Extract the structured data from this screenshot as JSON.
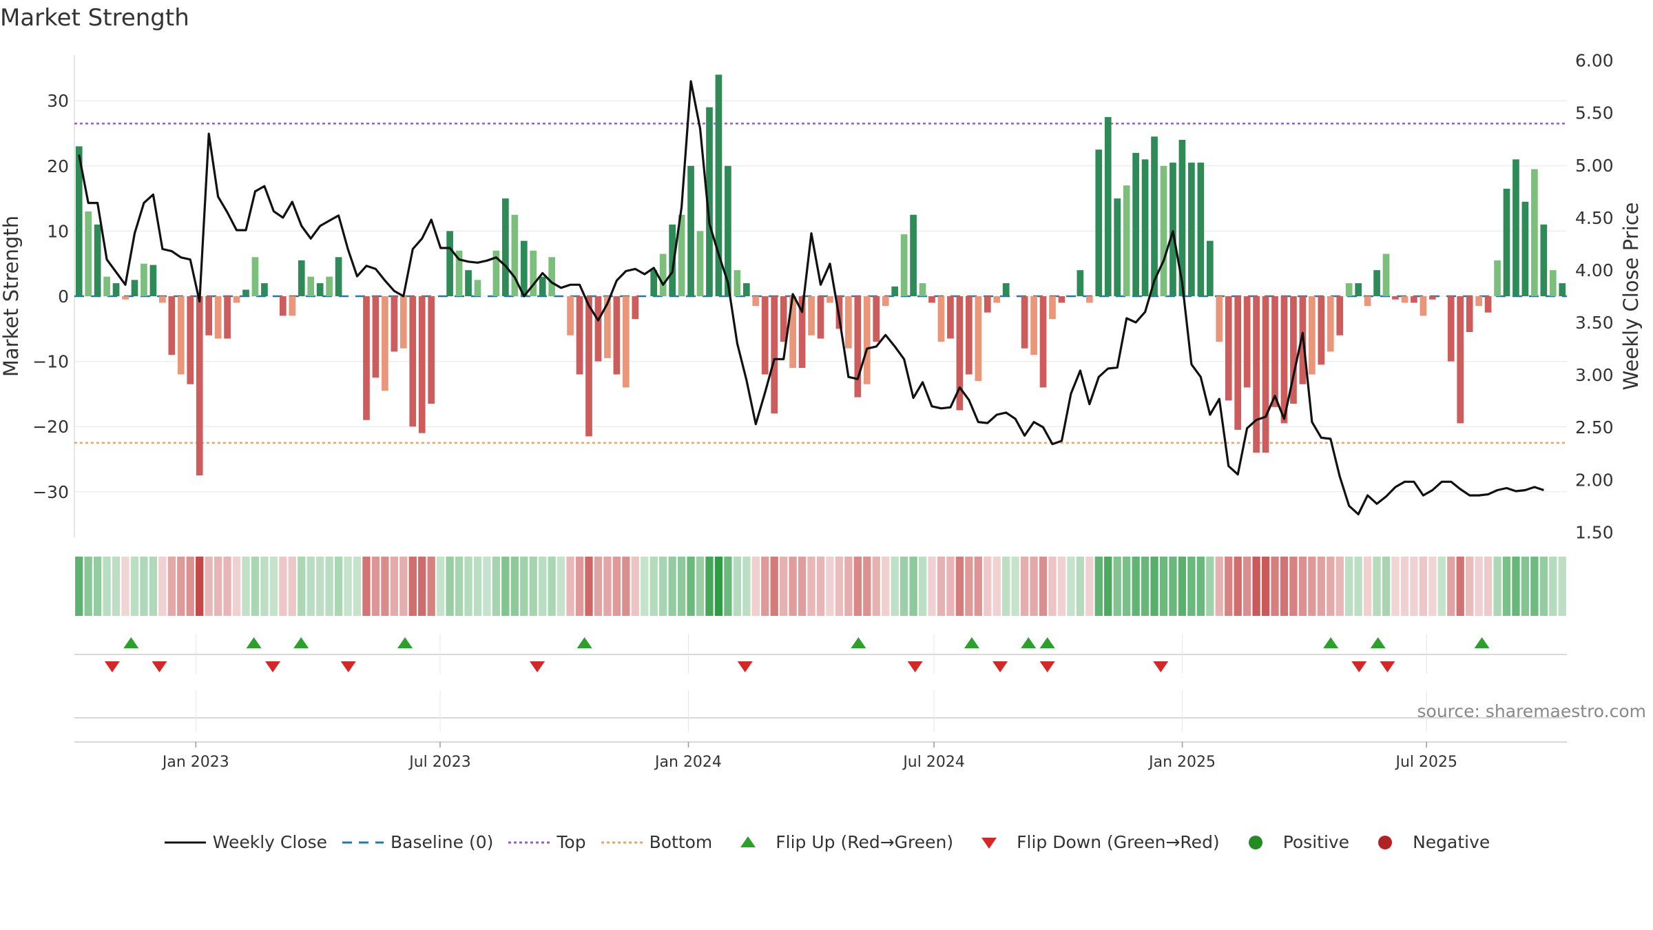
{
  "title": "Market Strength",
  "source": "source: sharemaestro.com",
  "colors": {
    "strong_green": "#2e8b57",
    "light_green": "#7cbf7c",
    "strong_red": "#cd5c5c",
    "light_red": "#e9967a",
    "price": "#111111",
    "baseline": "#1f77b4",
    "top": "#9b59d0",
    "bottom": "#f0a060",
    "flip_up": "#2ca02c",
    "flip_down": "#d62728",
    "positive": "#228b22",
    "negative": "#b22222"
  },
  "legend": [
    {
      "name": "legend-weekly-close",
      "label": "Weekly Close",
      "symbol": "line"
    },
    {
      "name": "legend-baseline",
      "label": "Baseline (0)",
      "symbol": "dash"
    },
    {
      "name": "legend-top",
      "label": "Top",
      "symbol": "dot-purple"
    },
    {
      "name": "legend-bottom",
      "label": "Bottom",
      "symbol": "dot-orange"
    },
    {
      "name": "legend-flip-up",
      "label": "Flip Up (Red→Green)",
      "symbol": "tri-up"
    },
    {
      "name": "legend-flip-down",
      "label": "Flip Down (Green→Red)",
      "symbol": "tri-down"
    },
    {
      "name": "legend-positive",
      "label": "Positive",
      "symbol": "circle-green"
    },
    {
      "name": "legend-negative",
      "label": "Negative",
      "symbol": "circle-red"
    }
  ],
  "chart_data": {
    "type": "bar",
    "title": "Market Strength",
    "ylabel": "Market Strength",
    "y2label": "Weekly Close Price",
    "ylim": [
      -37,
      37
    ],
    "y2lim": [
      1.45,
      6.05
    ],
    "yticks": [
      30,
      20,
      10,
      0,
      -10,
      -20,
      -30
    ],
    "ytick_labels": [
      "30",
      "20",
      "10",
      "0",
      "−10",
      "−20",
      "−30"
    ],
    "y2ticks": [
      6.0,
      5.5,
      5.0,
      4.5,
      4.0,
      3.5,
      3.0,
      2.5,
      2.0,
      1.5
    ],
    "y2tick_labels": [
      "6.00",
      "5.50",
      "5.00",
      "4.50",
      "4.00",
      "3.50",
      "3.00",
      "2.50",
      "2.00",
      "1.50"
    ],
    "x_start": "2022-10-03",
    "x_end": "2025-10-13",
    "xticks": [
      {
        "date": "2023-01-01",
        "label": "Jan 2023"
      },
      {
        "date": "2023-07-01",
        "label": "Jul 2023"
      },
      {
        "date": "2024-01-01",
        "label": "Jan 2024"
      },
      {
        "date": "2024-07-01",
        "label": "Jul 2024"
      },
      {
        "date": "2025-01-01",
        "label": "Jan 2025"
      },
      {
        "date": "2025-07-01",
        "label": "Jul 2025"
      }
    ],
    "top_line": 26.5,
    "bottom_line": -22.5,
    "baseline": 0,
    "series": [
      {
        "name": "Market Strength",
        "values": [
          23,
          13,
          11,
          3,
          2,
          -0.5,
          2.5,
          5,
          4.8,
          -1,
          -9,
          -12,
          -13.5,
          -27.5,
          -6,
          -6.5,
          -6.5,
          -1,
          1,
          6,
          2,
          0,
          -3,
          -3,
          5.5,
          3,
          2,
          3,
          6,
          0,
          0,
          -19,
          -12.5,
          -14.5,
          -8.5,
          -8,
          -20,
          -21,
          -16.5,
          0,
          10,
          7,
          4,
          2.5,
          0,
          7,
          15,
          12.5,
          8.5,
          7,
          3,
          6,
          0,
          -6,
          -12,
          -21.5,
          -10,
          -9.5,
          -12,
          -14,
          -3.5,
          0,
          4,
          6.5,
          11,
          12.5,
          20,
          10,
          29,
          34,
          20,
          4,
          2,
          -1.5,
          -12,
          -18,
          -7,
          -11,
          -11,
          -6,
          -6.5,
          -1,
          -5,
          -8,
          -15.5,
          -13.5,
          -7,
          -1.5,
          1.5,
          9.5,
          12.5,
          2,
          -1,
          -7,
          -6.5,
          -17.5,
          -12,
          -13,
          -2.5,
          -1,
          2,
          0,
          -8,
          -9,
          -14,
          -3.5,
          -1,
          0,
          4,
          -1,
          22.5,
          27.5,
          15,
          17,
          22,
          21,
          24.5,
          20,
          20.5,
          24,
          20.5,
          20.5,
          8.5,
          -7,
          -16,
          -20.5,
          -14,
          -24,
          -24,
          -17,
          -19.5,
          -16.5,
          -13.5,
          -12,
          -10.5,
          -8.5,
          -6,
          2,
          2,
          -1.5,
          4,
          6.5,
          -0.5,
          -1,
          -1,
          -3,
          -0.5,
          0,
          -10,
          -19.5,
          -5.5,
          -1.5,
          -2.5,
          5.5,
          16.5,
          21,
          14.5,
          19.5,
          11,
          4,
          2
        ]
      },
      {
        "name": "Weekly Close",
        "values": [
          5.1,
          4.64,
          4.64,
          4.1,
          3.98,
          3.86,
          4.35,
          4.64,
          4.72,
          4.2,
          4.18,
          4.12,
          4.1,
          3.7,
          5.3,
          4.7,
          4.55,
          4.38,
          4.38,
          4.75,
          4.8,
          4.56,
          4.5,
          4.65,
          4.42,
          4.3,
          4.42,
          4.47,
          4.52,
          4.2,
          3.94,
          4.04,
          4.01,
          3.9,
          3.8,
          3.75,
          4.2,
          4.3,
          4.48,
          4.21,
          4.21,
          4.1,
          4.08,
          4.07,
          4.09,
          4.12,
          4.04,
          3.93,
          3.75,
          3.86,
          3.97,
          3.88,
          3.83,
          3.86,
          3.86,
          3.66,
          3.52,
          3.68,
          3.9,
          3.99,
          4.01,
          3.96,
          4.02,
          3.86,
          3.98,
          4.6,
          5.8,
          5.35,
          4.44,
          4.15,
          3.88,
          3.3,
          2.95,
          2.53,
          2.83,
          3.15,
          3.15,
          3.77,
          3.6,
          4.35,
          3.86,
          4.06,
          3.55,
          2.98,
          2.96,
          3.25,
          3.27,
          3.38,
          3.27,
          3.15,
          2.78,
          2.93,
          2.7,
          2.68,
          2.69,
          2.88,
          2.76,
          2.55,
          2.54,
          2.62,
          2.64,
          2.58,
          2.42,
          2.55,
          2.5,
          2.34,
          2.37,
          2.82,
          3.04,
          2.72,
          2.98,
          3.06,
          3.07,
          3.54,
          3.5,
          3.6,
          3.9,
          4.09,
          4.37,
          3.88,
          3.1,
          2.98,
          2.62,
          2.77,
          2.13,
          2.05,
          2.49,
          2.57,
          2.6,
          2.8,
          2.58,
          2.99,
          3.4,
          2.55,
          2.4,
          2.39,
          2.03,
          1.75,
          1.67,
          1.85,
          1.77,
          1.84,
          1.93,
          1.98,
          1.98,
          1.85,
          1.9,
          1.98,
          1.98,
          1.91,
          1.85,
          1.85,
          1.86,
          1.9,
          1.92,
          1.89,
          1.9,
          1.93,
          1.9
        ]
      }
    ],
    "strip_values": [
      23,
      13,
      11,
      3,
      2,
      -0.5,
      2.5,
      5,
      4.8,
      -1,
      -9,
      -12,
      -13.5,
      -27.5,
      -6,
      -6.5,
      -6.5,
      -1,
      1,
      6,
      2,
      0,
      -3,
      -3,
      5.5,
      3,
      2,
      3,
      6,
      0,
      0,
      -19,
      -12.5,
      -14.5,
      -8.5,
      -8,
      -20,
      -21,
      -16.5,
      0,
      10,
      7,
      4,
      2.5,
      0,
      7,
      15,
      12.5,
      8.5,
      7,
      3,
      6,
      0,
      -6,
      -12,
      -21.5,
      -10,
      -9.5,
      -12,
      -14,
      -3.5,
      0,
      4,
      6.5,
      11,
      12.5,
      20,
      10,
      29,
      34,
      20,
      4,
      2,
      -1.5,
      -12,
      -18,
      -7,
      -11,
      -11,
      -6,
      -6.5,
      -1,
      -5,
      -8,
      -15.5,
      -13.5,
      -7,
      -1.5,
      1.5,
      9.5,
      12.5,
      2,
      -1,
      -7,
      -6.5,
      -17.5,
      -12,
      -13,
      -2.5,
      -1,
      2,
      0,
      -8,
      -9,
      -14,
      -3.5,
      -1,
      0,
      4,
      -1,
      22.5,
      27.5,
      15,
      17,
      22,
      21,
      24.5,
      20,
      20.5,
      24,
      20.5,
      20.5,
      8.5,
      -7,
      -16,
      -20.5,
      -14,
      -24,
      -24,
      -17,
      -19.5,
      -16.5,
      -13.5,
      -12,
      -10.5,
      -8.5,
      -6,
      2,
      2,
      -1.5,
      4,
      6.5,
      -0.5,
      -1,
      -1,
      -3,
      -0.5,
      0,
      -10,
      -19.5,
      -5.5,
      -1.5,
      -2.5,
      5.5,
      16.5,
      21,
      14.5,
      19.5,
      11,
      4,
      2
    ],
    "flip_up_dates": [
      "2022-11-14",
      "2023-02-13",
      "2023-03-20",
      "2023-06-05",
      "2023-10-16",
      "2024-05-06",
      "2024-07-29",
      "2024-09-09",
      "2024-09-23",
      "2025-04-21",
      "2025-05-26",
      "2025-08-11"
    ],
    "flip_down_dates": [
      "2022-10-31",
      "2022-12-05",
      "2023-02-27",
      "2023-04-24",
      "2023-09-11",
      "2024-02-12",
      "2024-06-17",
      "2024-08-19",
      "2024-09-23",
      "2024-12-16",
      "2025-05-12",
      "2025-06-02"
    ]
  }
}
